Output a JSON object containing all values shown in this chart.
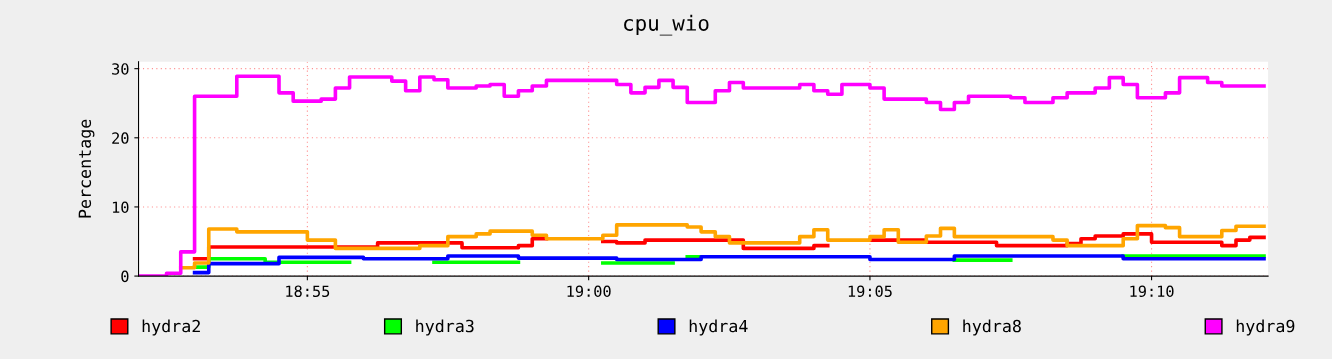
{
  "chart_data": {
    "type": "step",
    "title": "cpu_wio",
    "ylabel": "Percentage",
    "xlim": [
      18.8667,
      19.2012
    ],
    "xticks": [
      {
        "value": 18.9167,
        "label": "18:55"
      },
      {
        "value": 19.0,
        "label": "19:00"
      },
      {
        "value": 19.0833,
        "label": "19:05"
      },
      {
        "value": 19.1667,
        "label": "19:10"
      }
    ],
    "ylim": [
      0,
      31
    ],
    "yticks": [
      0,
      10,
      20,
      30
    ],
    "grid": true,
    "legend": "bottom",
    "series": [
      {
        "name": "hydra2",
        "color": "#ff0000",
        "x": [
          18.8833,
          18.8875,
          18.9375,
          18.9625,
          18.9792,
          18.9833,
          18.9875,
          19.0042,
          19.0083,
          19.0167,
          19.0458,
          19.0667,
          19.0708,
          19.0833,
          19.1,
          19.1208,
          19.1417,
          19.1458,
          19.15,
          19.1583,
          19.1667,
          19.1875,
          19.1917,
          19.1958,
          19.2
        ],
        "values": [
          2.5,
          4.2,
          4.8,
          4.1,
          4.4,
          5.4,
          null,
          5.0,
          4.8,
          5.2,
          4.0,
          4.4,
          null,
          5.2,
          4.9,
          4.4,
          4.7,
          5.4,
          5.8,
          6.1,
          4.9,
          4.4,
          5.2,
          5.6,
          5.6
        ]
      },
      {
        "name": "hydra3",
        "color": "#00ff00",
        "x": [
          18.8833,
          18.8875,
          18.9042,
          18.9292,
          18.9542,
          18.9792,
          19.0042,
          19.025,
          19.0292,
          19.0333,
          19.1083,
          19.125,
          19.1583,
          19.2
        ],
        "values": [
          1.3,
          2.5,
          2.0,
          null,
          2.0,
          null,
          1.9,
          null,
          2.8,
          null,
          2.3,
          null,
          2.9,
          2.9
        ]
      },
      {
        "name": "hydra4",
        "color": "#0000ff",
        "x": [
          18.8833,
          18.8875,
          18.9083,
          18.9333,
          18.9583,
          18.9792,
          19.0083,
          19.0333,
          19.0833,
          19.1083,
          19.1583,
          19.2
        ],
        "values": [
          0.5,
          1.8,
          2.7,
          2.5,
          2.9,
          2.6,
          2.4,
          2.8,
          2.4,
          2.9,
          2.5,
          2.5
        ]
      },
      {
        "name": "hydra8",
        "color": "#ffa500",
        "x": [
          18.8792,
          18.8833,
          18.8875,
          18.8958,
          18.9167,
          18.925,
          18.95,
          18.9583,
          18.9667,
          18.9708,
          18.9833,
          18.9875,
          19.0042,
          19.0083,
          19.0292,
          19.0333,
          19.0375,
          19.0417,
          19.0625,
          19.0667,
          19.0708,
          19.0833,
          19.0875,
          19.0917,
          19.1,
          19.1042,
          19.1083,
          19.1375,
          19.1417,
          19.1583,
          19.1625,
          19.1708,
          19.175,
          19.1875,
          19.1917,
          19.2
        ],
        "values": [
          1.2,
          1.9,
          6.8,
          6.4,
          5.2,
          4.0,
          4.4,
          5.7,
          6.1,
          6.5,
          5.9,
          5.4,
          5.9,
          7.4,
          7.1,
          6.4,
          5.7,
          4.8,
          5.7,
          6.7,
          5.2,
          5.7,
          6.7,
          4.9,
          5.8,
          6.9,
          5.7,
          5.2,
          4.4,
          5.4,
          7.3,
          7.0,
          5.7,
          6.6,
          7.2,
          7.2
        ]
      },
      {
        "name": "hydra9",
        "color": "#ff00ff",
        "x": [
          18.8667,
          18.875,
          18.8792,
          18.8833,
          18.8958,
          18.9083,
          18.9125,
          18.9208,
          18.925,
          18.9292,
          18.9417,
          18.9458,
          18.95,
          18.9542,
          18.9583,
          18.9667,
          18.9708,
          18.975,
          18.9792,
          18.9833,
          18.9875,
          19.0083,
          19.0125,
          19.0167,
          19.0208,
          19.025,
          19.0292,
          19.0375,
          19.0417,
          19.0458,
          19.0625,
          19.0667,
          19.0708,
          19.075,
          19.0833,
          19.0875,
          19.1,
          19.1042,
          19.1083,
          19.1125,
          19.125,
          19.1292,
          19.1375,
          19.1417,
          19.15,
          19.1542,
          19.1583,
          19.1625,
          19.1708,
          19.175,
          19.1833,
          19.1875,
          19.2
        ],
        "values": [
          0,
          0.4,
          3.5,
          26.0,
          28.9,
          26.5,
          25.3,
          25.6,
          27.2,
          28.8,
          28.2,
          26.8,
          28.8,
          28.4,
          27.2,
          27.5,
          27.7,
          26.0,
          26.8,
          27.5,
          28.3,
          27.7,
          26.5,
          27.3,
          28.3,
          27.3,
          25.1,
          26.8,
          28.0,
          27.2,
          27.7,
          26.8,
          26.3,
          27.7,
          27.2,
          25.6,
          25.1,
          24.1,
          25.1,
          26.0,
          25.8,
          25.1,
          25.8,
          26.5,
          27.2,
          28.7,
          27.7,
          25.8,
          26.5,
          28.7,
          28.0,
          27.5,
          27.5
        ]
      }
    ]
  }
}
